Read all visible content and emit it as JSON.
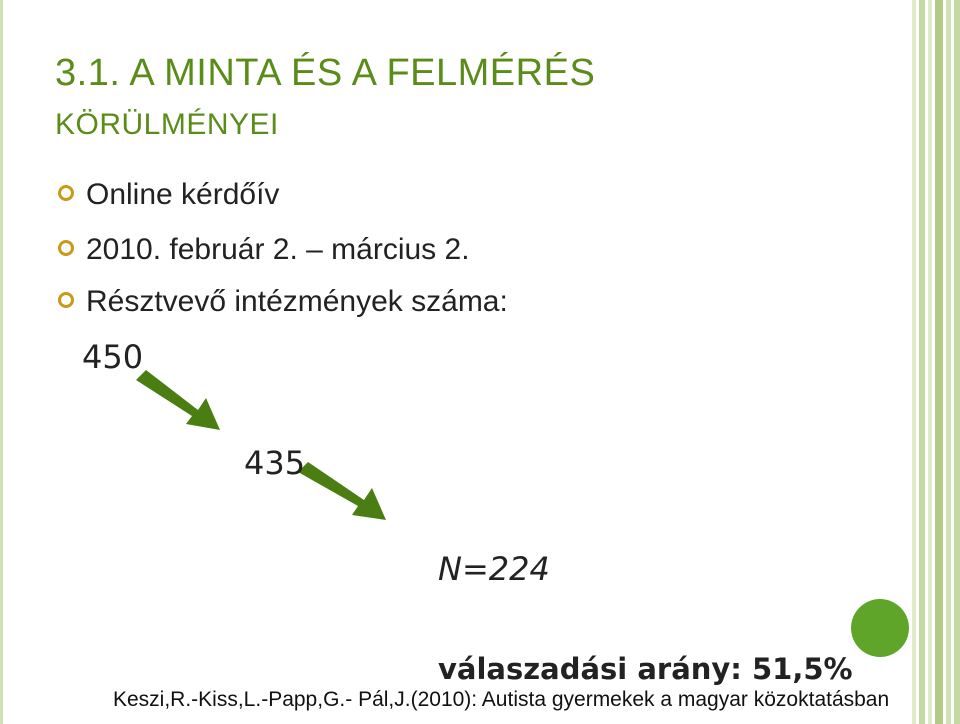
{
  "title": {
    "lines": [
      "3.1. A MINTA ÉS A FELMÉRÉS",
      "KÖRÜLMÉNYEI"
    ]
  },
  "bullets": [
    "Online kérdőív",
    "2010. február 2. – március 2.",
    "Résztvevő intézmények száma:"
  ],
  "steps": [
    "450",
    "435",
    "N=224"
  ],
  "response_rate": "válaszadási arány: 51,5%",
  "footer": "Keszi,R.-Kiss,L.-Papp,G.- Pál,J.(2010): Autista gyermekek a magyar közoktatásban"
}
